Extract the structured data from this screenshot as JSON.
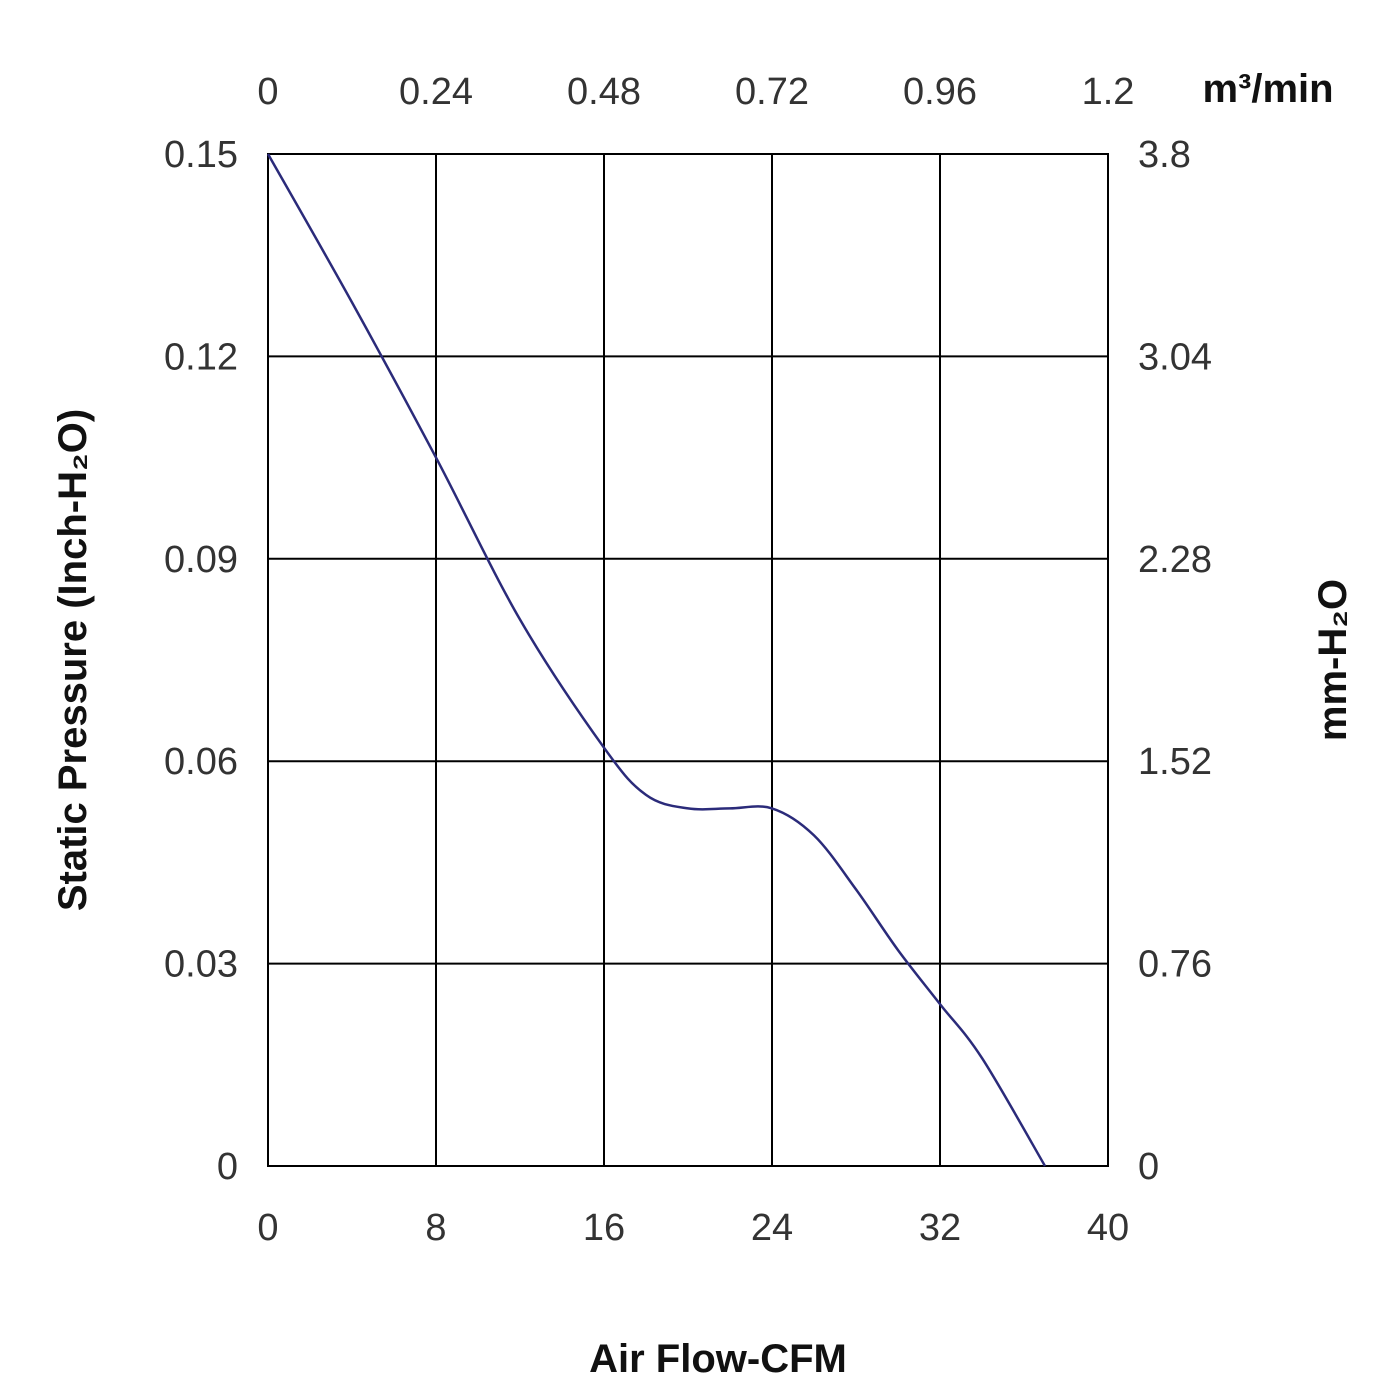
{
  "chart_data": {
    "type": "line",
    "x_axis": {
      "label": "Air Flow-CFM",
      "range": [
        0,
        40
      ],
      "ticks": [
        "0",
        "8",
        "16",
        "24",
        "32",
        "40"
      ]
    },
    "x2_axis": {
      "label": "m³/min",
      "range": [
        0,
        1.2
      ],
      "ticks": [
        "0",
        "0.24",
        "0.48",
        "0.72",
        "0.96",
        "1.2"
      ]
    },
    "y_axis": {
      "label": "Static Pressure (Inch-H₂O)",
      "range": [
        0,
        0.15
      ],
      "ticks": [
        "0",
        "0.03",
        "0.06",
        "0.09",
        "0.12",
        "0.15"
      ]
    },
    "y2_axis": {
      "label": "mm-H₂O",
      "range": [
        0,
        3.8
      ],
      "ticks": [
        "0",
        "0.76",
        "1.52",
        "2.28",
        "3.04",
        "3.8"
      ]
    },
    "grid": true,
    "series": [
      {
        "color": "#2b2b7a",
        "x": [
          0,
          4,
          8,
          12,
          16,
          18,
          20,
          22,
          24,
          26,
          28,
          30,
          32,
          34,
          37
        ],
        "y": [
          0.15,
          0.128,
          0.105,
          0.081,
          0.062,
          0.055,
          0.053,
          0.053,
          0.053,
          0.049,
          0.041,
          0.032,
          0.024,
          0.016,
          0.0
        ]
      }
    ]
  }
}
